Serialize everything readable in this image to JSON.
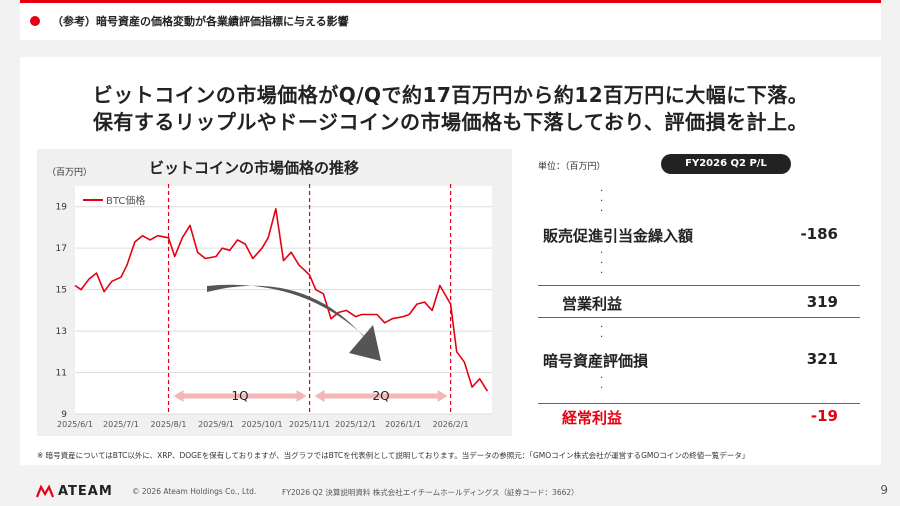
{
  "header": {
    "section_title": "（参考）暗号資産の価格変動が各業績評価指標に与える影響"
  },
  "headline": {
    "line1": "ビットコインの市場価格がQ/Qで約17百万円から約12百万円に大幅に下落。",
    "line2": "保有するリップルやドージコインの市場価格も下落しており、評価損を計上。"
  },
  "chart": {
    "title": "ビットコインの市場価格の推移",
    "unit": "（百万円）"
  },
  "chart_data": {
    "type": "line",
    "title": "ビットコインの市場価格の推移",
    "ylabel": "（百万円）",
    "ylim": [
      9,
      20
    ],
    "yticks": [
      9,
      11,
      13,
      15,
      17,
      19
    ],
    "xtick_labels": [
      "2025/6/1",
      "2025/7/1",
      "2025/8/1",
      "2025/9/1",
      "2025/10/1",
      "2025/11/1",
      "2025/12/1",
      "2026/1/1",
      "2026/2/1"
    ],
    "series": [
      {
        "name": "BTC価格",
        "color": "#e60012",
        "x": [
          "2025/6/1",
          "2025/6/5",
          "2025/6/10",
          "2025/6/15",
          "2025/6/20",
          "2025/6/25",
          "2025/7/1",
          "2025/7/5",
          "2025/7/10",
          "2025/7/15",
          "2025/7/20",
          "2025/7/25",
          "2025/8/1",
          "2025/8/5",
          "2025/8/10",
          "2025/8/15",
          "2025/8/20",
          "2025/8/25",
          "2025/9/1",
          "2025/9/5",
          "2025/9/10",
          "2025/9/15",
          "2025/9/20",
          "2025/9/25",
          "2025/10/1",
          "2025/10/5",
          "2025/10/10",
          "2025/10/15",
          "2025/10/20",
          "2025/10/25",
          "2025/11/1",
          "2025/11/5",
          "2025/11/10",
          "2025/11/15",
          "2025/11/20",
          "2025/11/25",
          "2025/12/1",
          "2025/12/5",
          "2025/12/10",
          "2025/12/15",
          "2025/12/20",
          "2025/12/25",
          "2026/1/1",
          "2026/1/5",
          "2026/1/10",
          "2026/1/15",
          "2026/1/20",
          "2026/1/25",
          "2026/2/1",
          "2026/2/5",
          "2026/2/10",
          "2026/2/15",
          "2026/2/20",
          "2026/2/25"
        ],
        "values": [
          15.2,
          15.0,
          15.5,
          15.8,
          14.9,
          15.4,
          15.6,
          16.2,
          17.3,
          17.6,
          17.4,
          17.6,
          17.5,
          16.6,
          17.5,
          18.1,
          16.8,
          16.5,
          16.6,
          17.0,
          16.9,
          17.4,
          17.2,
          16.5,
          17.0,
          17.5,
          18.9,
          16.4,
          16.8,
          16.2,
          15.7,
          15.0,
          14.8,
          13.6,
          13.9,
          14.0,
          13.7,
          13.8,
          13.8,
          13.8,
          13.4,
          13.6,
          13.7,
          13.8,
          14.3,
          14.4,
          14.0,
          15.2,
          14.3,
          12.0,
          11.5,
          10.3,
          10.7,
          10.1
        ]
      }
    ],
    "vlines": [
      "2025/8/1",
      "2025/11/1",
      "2026/2/1"
    ],
    "annotations": [
      {
        "text": "1Q"
      },
      {
        "text": "2Q"
      }
    ]
  },
  "pl": {
    "unit": "単位：（百万円）",
    "period_badge": "FY2026 Q2 P/L",
    "rows": [
      {
        "label": "販売促進引当金繰入額",
        "value": "-186"
      },
      {
        "label": "営業利益",
        "value": "319"
      },
      {
        "label": "暗号資産評価損",
        "value": "321"
      },
      {
        "label": "経常利益",
        "value": "-19"
      }
    ]
  },
  "note": "※ 暗号資産についてはBTC以外に、XRP、DOGEを保有しておりますが、当グラフではBTCを代表例として説明しております。当データの参照元：「GMOコイン株式会社が運営するGMOコインの終値一覧データ」",
  "footer": {
    "logo": "ATEAM",
    "copyright": "© 2026 Ateam Holdings Co., Ltd.",
    "document": "FY2026 Q2 決算説明資料 株式会社エイチームホールディングス（証券コード：3662）",
    "page": "9"
  },
  "colors": {
    "accent": "#e60012",
    "gray_arrow": "#555555",
    "pink_arrow": "#f4b6b6"
  }
}
